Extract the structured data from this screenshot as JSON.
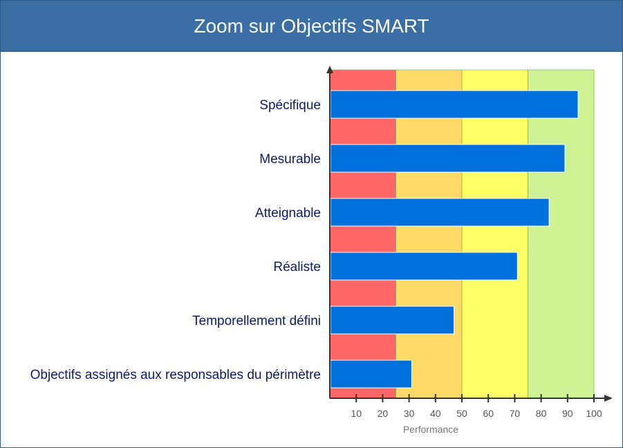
{
  "header": {
    "title": "Zoom sur Objectifs SMART"
  },
  "chart_data": {
    "type": "bar",
    "orientation": "horizontal",
    "title": "Zoom sur Objectifs SMART",
    "xlabel": "Performance",
    "ylabel": "",
    "xlim": [
      0,
      100
    ],
    "xticks": [
      10,
      20,
      30,
      40,
      50,
      60,
      70,
      80,
      90,
      100
    ],
    "categories": [
      "Spécifique",
      "Mesurable",
      "Atteignable",
      "Réaliste",
      "Temporellement défini",
      "Objectifs assignés aux responsables du périmètre"
    ],
    "values": [
      94,
      89,
      83,
      71,
      47,
      31
    ],
    "bands": [
      {
        "from": 0,
        "to": 25,
        "color": "#ff6666"
      },
      {
        "from": 25,
        "to": 50,
        "color": "#ffd966"
      },
      {
        "from": 50,
        "to": 75,
        "color": "#ffff66"
      },
      {
        "from": 75,
        "to": 100,
        "color": "#ccf294"
      }
    ],
    "bar_color": "#0070dd"
  }
}
